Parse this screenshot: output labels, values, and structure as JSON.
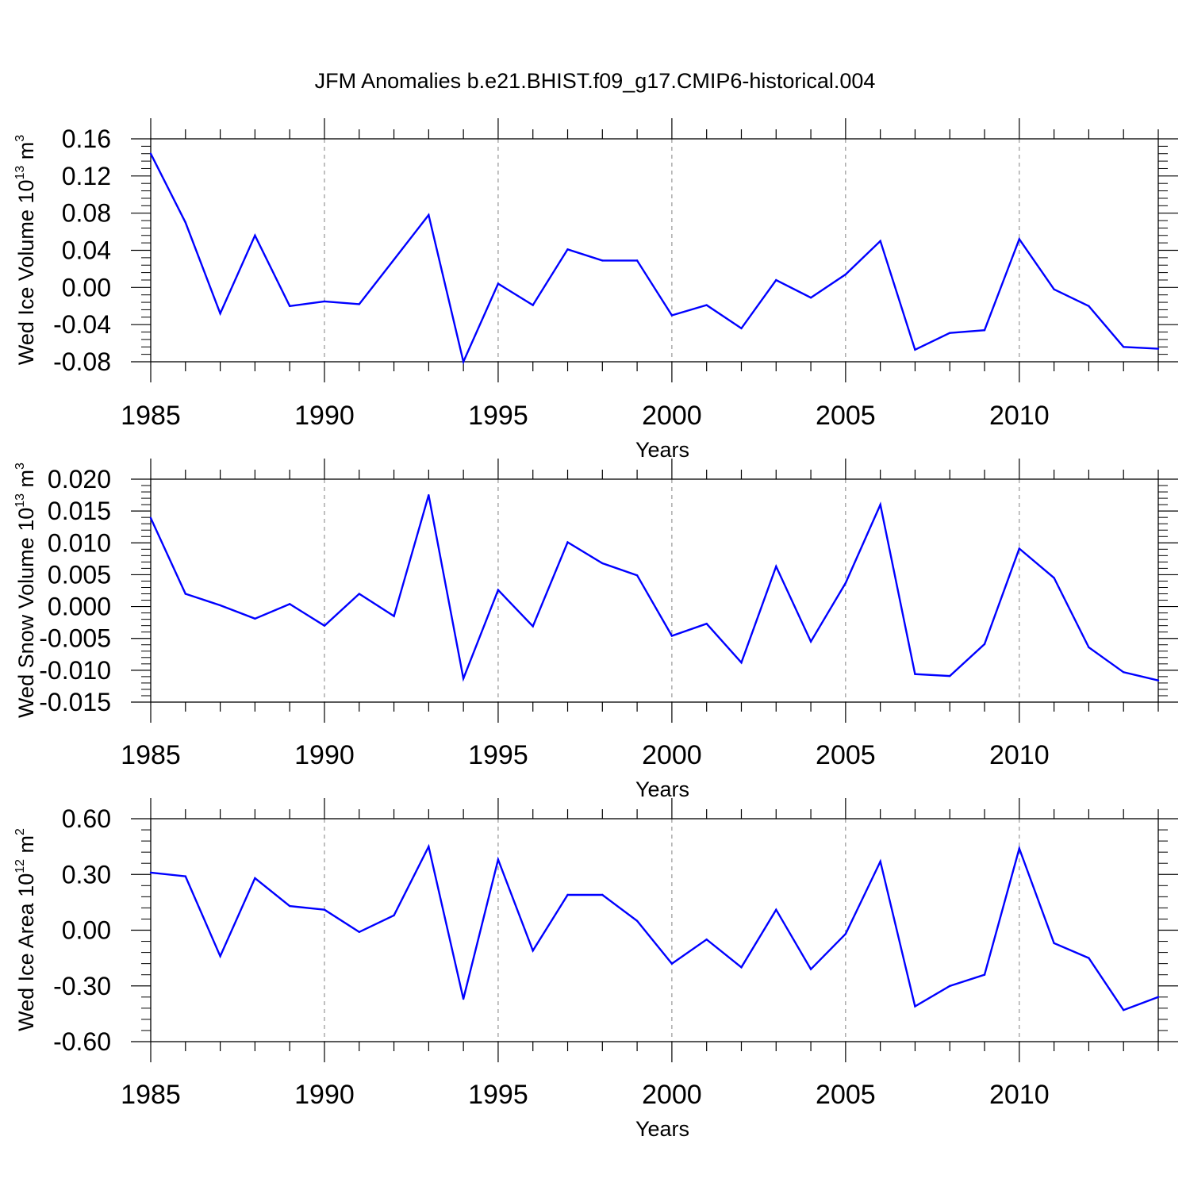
{
  "title": "JFM Anomalies b.e21.BHIST.f09_g17.CMIP6-historical.004",
  "colors": {
    "line": "#0000ff",
    "axis": "#000000",
    "grid": "#808080"
  },
  "chart_data": [
    {
      "type": "line",
      "ylabel": {
        "main": "Wed Ice Volume 10",
        "exp": "13",
        "unit": " m",
        "unit_exp": "3"
      },
      "xlabel": "Years",
      "xlim": [
        1985,
        2014
      ],
      "ylim": [
        -0.08,
        0.16
      ],
      "x_ticks": [
        "1985",
        "1990",
        "1995",
        "2000",
        "2005",
        "2010"
      ],
      "y_ticks": [
        "0.16",
        "0.12",
        "0.08",
        "0.04",
        "0.00",
        "-0.04",
        "-0.08"
      ],
      "x": [
        1985,
        1986,
        1987,
        1988,
        1989,
        1990,
        1991,
        1992,
        1993,
        1994,
        1995,
        1996,
        1997,
        1998,
        1999,
        2000,
        2001,
        2002,
        2003,
        2004,
        2005,
        2006,
        2007,
        2008,
        2009,
        2010,
        2011,
        2012,
        2013,
        2014
      ],
      "values": [
        0.144,
        0.07,
        -0.028,
        0.056,
        -0.02,
        -0.015,
        -0.018,
        0.03,
        0.078,
        -0.08,
        0.004,
        -0.019,
        0.041,
        0.029,
        0.029,
        -0.03,
        -0.019,
        -0.044,
        0.008,
        -0.011,
        0.014,
        0.05,
        -0.067,
        -0.049,
        -0.046,
        0.052,
        -0.002,
        -0.02,
        -0.064,
        -0.066
      ]
    },
    {
      "type": "line",
      "ylabel": {
        "main": "Wed Snow Volume 10",
        "exp": "13",
        "unit": " m",
        "unit_exp": "3"
      },
      "xlabel": "Years",
      "xlim": [
        1985,
        2014
      ],
      "ylim": [
        -0.015,
        0.02
      ],
      "x_ticks": [
        "1985",
        "1990",
        "1995",
        "2000",
        "2005",
        "2010"
      ],
      "y_ticks": [
        "0.020",
        "0.015",
        "0.010",
        "0.005",
        "0.000",
        "-0.005",
        "-0.010",
        "-0.015"
      ],
      "x": [
        1985,
        1986,
        1987,
        1988,
        1989,
        1990,
        1991,
        1992,
        1993,
        1994,
        1995,
        1996,
        1997,
        1998,
        1999,
        2000,
        2001,
        2002,
        2003,
        2004,
        2005,
        2006,
        2007,
        2008,
        2009,
        2010,
        2011,
        2012,
        2013,
        2014
      ],
      "values": [
        0.0139,
        0.002,
        0.0002,
        -0.0019,
        0.0004,
        -0.003,
        0.002,
        -0.0015,
        0.0175,
        -0.0113,
        0.0026,
        -0.0031,
        0.0101,
        0.0068,
        0.0049,
        -0.0046,
        -0.0027,
        -0.0088,
        0.0063,
        -0.0055,
        0.0037,
        0.016,
        -0.0106,
        -0.0109,
        -0.0059,
        0.0091,
        0.0045,
        -0.0064,
        -0.0103,
        -0.0116
      ]
    },
    {
      "type": "line",
      "ylabel": {
        "main": "Wed Ice Area 10",
        "exp": "12",
        "unit": " m",
        "unit_exp": "2"
      },
      "xlabel": "Years",
      "xlim": [
        1985,
        2014
      ],
      "ylim": [
        -0.6,
        0.6
      ],
      "x_ticks": [
        "1985",
        "1990",
        "1995",
        "2000",
        "2005",
        "2010"
      ],
      "y_ticks": [
        "0.60",
        "0.30",
        "0.00",
        "-0.30",
        "-0.60"
      ],
      "x": [
        1985,
        1986,
        1987,
        1988,
        1989,
        1990,
        1991,
        1992,
        1993,
        1994,
        1995,
        1996,
        1997,
        1998,
        1999,
        2000,
        2001,
        2002,
        2003,
        2004,
        2005,
        2006,
        2007,
        2008,
        2009,
        2010,
        2011,
        2012,
        2013,
        2014
      ],
      "values": [
        0.31,
        0.29,
        -0.14,
        0.28,
        0.13,
        0.11,
        -0.01,
        0.08,
        0.45,
        -0.37,
        0.38,
        -0.11,
        0.19,
        0.19,
        0.05,
        -0.18,
        -0.05,
        -0.2,
        0.11,
        -0.21,
        -0.02,
        0.37,
        -0.41,
        -0.3,
        -0.24,
        0.44,
        -0.07,
        -0.15,
        -0.43,
        -0.36
      ]
    }
  ]
}
